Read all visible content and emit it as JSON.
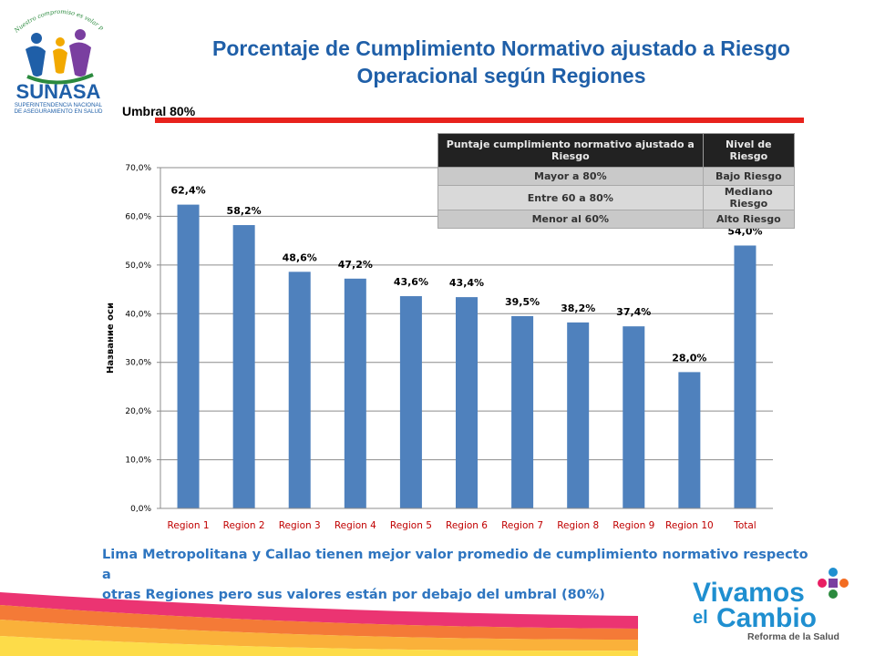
{
  "title": {
    "line1": "Porcentaje de Cumplimiento Normativo ajustado a Riesgo",
    "line2": "Operacional según Regiones"
  },
  "logo_sunasa": {
    "tagline": "Nuestro compromiso es velar por tu Salud",
    "name": "SUNASA",
    "sub1": "SUPERINTENDENCIA NACIONAL",
    "sub2": "DE ASEGURAMIENTO EN SALUD"
  },
  "threshold": {
    "label": "Umbral 80%",
    "color": "#e8221c"
  },
  "risk_table": {
    "headers": [
      "Puntaje cumplimiento normativo ajustado a Riesgo",
      "Nivel de Riesgo"
    ],
    "rows": [
      [
        "Mayor a 80%",
        "Bajo Riesgo"
      ],
      [
        "Entre 60 a 80%",
        "Mediano Riesgo"
      ],
      [
        "Menor al 60%",
        "Alto Riesgo"
      ]
    ]
  },
  "chart_data": {
    "type": "bar",
    "categories": [
      "Region 1",
      "Region 2",
      "Region 3",
      "Region 4",
      "Region 5",
      "Region 6",
      "Region 7",
      "Region 8",
      "Region 9",
      "Region 10",
      "Total"
    ],
    "values": [
      62.4,
      58.2,
      48.6,
      47.2,
      43.6,
      43.4,
      39.5,
      38.2,
      37.4,
      28.0,
      54.0
    ],
    "data_labels": [
      "62,4%",
      "58,2%",
      "48,6%",
      "47,2%",
      "43,6%",
      "43,4%",
      "39,5%",
      "38,2%",
      "37,4%",
      "28,0%",
      "54,0%"
    ],
    "y_ticks": [
      0,
      10,
      20,
      30,
      40,
      50,
      60,
      70
    ],
    "y_tick_labels": [
      "0,0%",
      "10,0%",
      "20,0%",
      "30,0%",
      "40,0%",
      "50,0%",
      "60,0%",
      "70,0%"
    ],
    "ylim": [
      0,
      70
    ],
    "ylabel": "Название оси",
    "xlabel": "",
    "grid": true,
    "bar_color": "#4f81bd",
    "category_label_color": "#c00000"
  },
  "caption": {
    "line1": "Lima Metropolitana y Callao tienen mejor valor promedio de cumplimiento normativo respecto a",
    "line2": "otras Regiones pero sus valores están por debajo del umbral (80%)"
  },
  "logo_vivamos": {
    "word1": "Vivamos",
    "word2": "el",
    "word3": "Cambio",
    "sub": "Reforma de la Salud"
  }
}
